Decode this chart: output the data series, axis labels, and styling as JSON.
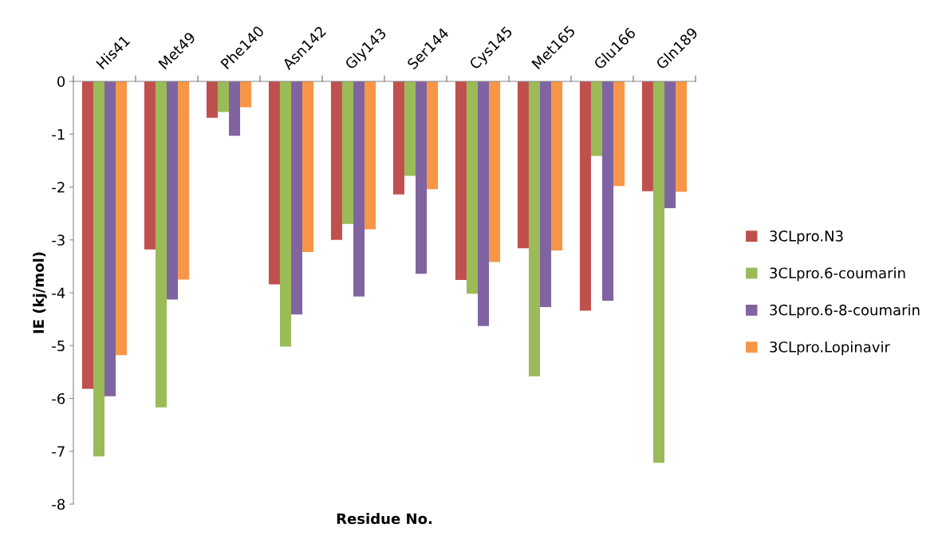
{
  "chart_data": {
    "type": "bar",
    "xlabel": "Residue No.",
    "ylabel": "IE (kj/mol)",
    "categories": [
      "His41",
      "Met49",
      "Phe140",
      "Asn142",
      "Gly143",
      "Ser144",
      "Cys145",
      "Met165",
      "Glu166",
      "Gln189"
    ],
    "series": [
      {
        "name": "3CLpro.N3",
        "color": "#c0504d",
        "values": [
          -5.82,
          -3.18,
          -0.69,
          -3.84,
          -3.0,
          -2.14,
          -3.76,
          -3.16,
          -4.34,
          -2.08
        ]
      },
      {
        "name": "3CLpro.6-coumarin",
        "color": "#9bbb59",
        "values": [
          -7.1,
          -6.17,
          -0.58,
          -5.02,
          -2.7,
          -1.79,
          -4.02,
          -5.58,
          -1.41,
          -7.22
        ]
      },
      {
        "name": "3CLpro.6-8-coumarin",
        "color": "#8064a2",
        "values": [
          -5.96,
          -4.13,
          -1.03,
          -4.41,
          -4.07,
          -3.64,
          -4.63,
          -4.27,
          -4.15,
          -2.4
        ]
      },
      {
        "name": "3CLpro.Lopinavir",
        "color": "#f79646",
        "values": [
          -5.18,
          -3.75,
          -0.49,
          -3.23,
          -2.8,
          -2.04,
          -3.42,
          -3.2,
          -1.98,
          -2.09
        ]
      }
    ],
    "ylim": [
      -8,
      0
    ],
    "yticks": [
      -8,
      -7,
      -6,
      -5,
      -4,
      -3,
      -2,
      -1,
      0
    ],
    "grid": false,
    "legend": "right"
  }
}
